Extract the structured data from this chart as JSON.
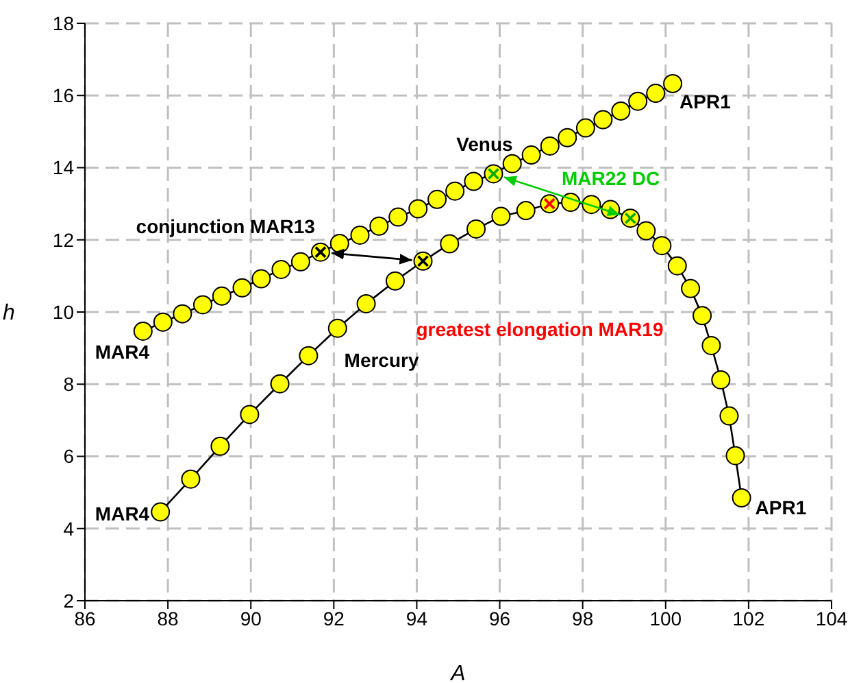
{
  "chart_data": {
    "type": "line",
    "xlabel": "A",
    "ylabel": "h",
    "xlim": [
      86,
      104
    ],
    "xticks": [
      86,
      88,
      90,
      92,
      94,
      96,
      98,
      100,
      102,
      104
    ],
    "ylim": [
      2,
      18
    ],
    "yticks": [
      2,
      4,
      6,
      8,
      10,
      12,
      14,
      16,
      18
    ],
    "grid": true,
    "legend": false,
    "marker": "circle",
    "line_style": "solid",
    "series": [
      {
        "name": "Venus",
        "color": "#ffff00",
        "x": [
          87.4,
          87.88,
          88.35,
          88.84,
          89.3,
          89.79,
          90.25,
          90.73,
          91.2,
          91.68,
          92.14,
          92.63,
          93.09,
          93.55,
          94.03,
          94.49,
          94.92,
          95.37,
          95.85,
          96.3,
          96.76,
          97.21,
          97.63,
          98.07,
          98.49,
          98.92,
          99.33,
          99.76,
          100.17
        ],
        "values": [
          9.47,
          9.72,
          9.95,
          10.2,
          10.44,
          10.67,
          10.92,
          11.18,
          11.39,
          11.66,
          11.9,
          12.13,
          12.38,
          12.63,
          12.86,
          13.12,
          13.35,
          13.62,
          13.83,
          14.11,
          14.35,
          14.6,
          14.83,
          15.1,
          15.33,
          15.57,
          15.84,
          16.06,
          16.33
        ]
      },
      {
        "name": "Mercury",
        "color": "#ffff00",
        "x": [
          87.82,
          88.55,
          89.26,
          89.97,
          90.7,
          91.39,
          92.09,
          92.78,
          93.48,
          94.15,
          94.79,
          95.43,
          96.03,
          96.63,
          97.2,
          97.71,
          98.21,
          98.67,
          99.15,
          99.53,
          99.91,
          100.28,
          100.6,
          100.88,
          101.1,
          101.33,
          101.53,
          101.68,
          101.83
        ],
        "values": [
          4.46,
          5.37,
          6.28,
          7.16,
          8.01,
          8.79,
          9.55,
          10.23,
          10.86,
          11.41,
          11.89,
          12.3,
          12.65,
          12.81,
          13.0,
          13.04,
          12.98,
          12.84,
          12.6,
          12.25,
          11.84,
          11.28,
          10.65,
          9.9,
          9.07,
          8.12,
          7.12,
          6.02,
          4.85
        ]
      }
    ],
    "annotations": [
      {
        "text": "MAR4",
        "x": 87.4,
        "y": 9.47
      },
      {
        "text": "MAR4",
        "x": 87.82,
        "y": 4.46
      },
      {
        "text": "APR1",
        "x": 100.17,
        "y": 16.33
      },
      {
        "text": "APR1",
        "x": 101.83,
        "y": 4.85
      },
      {
        "text": "conjunction MAR13",
        "x": 91.68,
        "y": 11.66
      },
      "greatest elongation MAR19",
      "MAR22 DC"
    ]
  }
}
